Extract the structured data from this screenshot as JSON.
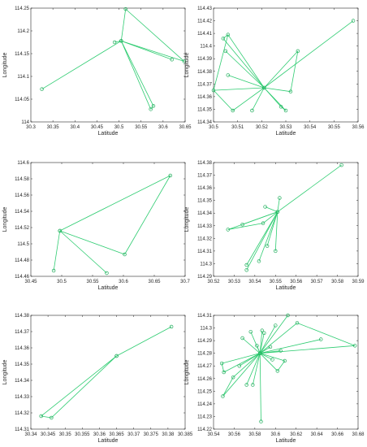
{
  "style": {
    "line_color": "#2ecc71",
    "marker_color": "#27ae60",
    "axis_color": "#262626",
    "grid_color": "#dddddd"
  },
  "chart_data": [
    {
      "type": "line",
      "xlabel": "Latitude",
      "ylabel": "Longitude",
      "xlim": [
        30.3,
        30.65
      ],
      "ylim": [
        114.0,
        114.25
      ],
      "xticks": [
        "30.3",
        "30.35",
        "30.4",
        "30.45",
        "30.5",
        "30.55",
        "30.6",
        "30.65"
      ],
      "yticks": [
        "114",
        "114.05",
        "114.1",
        "114.15",
        "114.2",
        "114.25"
      ],
      "hub": [
        30.505,
        114.178
      ],
      "spokes": [
        [
          30.325,
          114.072
        ],
        [
          30.49,
          114.175
        ],
        [
          30.515,
          114.248
        ],
        [
          30.572,
          114.028
        ],
        [
          30.578,
          114.035
        ],
        [
          30.62,
          114.137
        ],
        [
          30.648,
          114.133
        ]
      ],
      "lines": [
        [
          [
            30.515,
            114.248
          ],
          [
            30.648,
            114.133
          ]
        ],
        [
          [
            30.572,
            114.028
          ],
          [
            30.578,
            114.035
          ]
        ]
      ]
    },
    {
      "type": "line",
      "xlabel": "Latitude",
      "ylabel": "Longitude",
      "xlim": [
        30.5,
        30.56
      ],
      "ylim": [
        114.34,
        114.43
      ],
      "xticks": [
        "30.5",
        "30.51",
        "30.52",
        "30.53",
        "30.54",
        "30.55",
        "30.56"
      ],
      "yticks": [
        "114.34",
        "114.35",
        "114.36",
        "114.37",
        "114.38",
        "114.39",
        "114.4",
        "114.41",
        "114.42",
        "114.43"
      ],
      "hub": [
        30.521,
        114.367
      ],
      "spokes": [
        [
          30.5,
          114.365
        ],
        [
          30.504,
          114.406
        ],
        [
          30.505,
          114.396
        ],
        [
          30.506,
          114.409
        ],
        [
          30.506,
          114.377
        ],
        [
          30.508,
          114.349
        ],
        [
          30.516,
          114.349
        ],
        [
          30.528,
          114.352
        ],
        [
          30.53,
          114.349
        ],
        [
          30.532,
          114.364
        ],
        [
          30.535,
          114.396
        ],
        [
          30.558,
          114.42
        ]
      ],
      "lines": [
        [
          [
            30.504,
            114.406
          ],
          [
            30.506,
            114.409
          ]
        ],
        [
          [
            30.506,
            114.409
          ],
          [
            30.5,
            114.365
          ]
        ],
        [
          [
            30.5,
            114.365
          ],
          [
            30.508,
            114.349
          ]
        ],
        [
          [
            30.528,
            114.352
          ],
          [
            30.53,
            114.349
          ]
        ],
        [
          [
            30.532,
            114.364
          ],
          [
            30.535,
            114.396
          ]
        ]
      ]
    },
    {
      "type": "line",
      "xlabel": "Latitude",
      "ylabel": "Longitude",
      "xlim": [
        30.45,
        30.7
      ],
      "ylim": [
        114.46,
        114.6
      ],
      "xticks": [
        "30.45",
        "30.5",
        "30.55",
        "30.6",
        "30.65",
        "30.7"
      ],
      "yticks": [
        "114.46",
        "114.48",
        "114.5",
        "114.52",
        "114.54",
        "114.56",
        "114.58",
        "114.6"
      ],
      "hub": [
        30.497,
        114.516
      ],
      "spokes": [
        [
          30.487,
          114.467
        ],
        [
          30.573,
          114.464
        ],
        [
          30.602,
          114.487
        ],
        [
          30.676,
          114.584
        ]
      ],
      "lines": [
        [
          [
            30.602,
            114.487
          ],
          [
            30.676,
            114.584
          ]
        ]
      ]
    },
    {
      "type": "line",
      "xlabel": "Latitude",
      "ylabel": "Longitude",
      "xlim": [
        30.52,
        30.59
      ],
      "ylim": [
        114.29,
        114.38
      ],
      "xticks": [
        "30.52",
        "30.53",
        "30.54",
        "30.55",
        "30.56",
        "30.57",
        "30.58",
        "30.59"
      ],
      "yticks": [
        "114.29",
        "114.3",
        "114.31",
        "114.32",
        "114.33",
        "114.34",
        "114.35",
        "114.36",
        "114.37",
        "114.38"
      ],
      "hub": [
        30.551,
        114.341
      ],
      "spokes": [
        [
          30.527,
          114.327
        ],
        [
          30.534,
          114.331
        ],
        [
          30.536,
          114.299
        ],
        [
          30.536,
          114.295
        ],
        [
          30.542,
          114.302
        ],
        [
          30.544,
          114.332
        ],
        [
          30.545,
          114.345
        ],
        [
          30.546,
          114.314
        ],
        [
          30.55,
          114.31
        ],
        [
          30.552,
          114.352
        ],
        [
          30.582,
          114.378
        ]
      ],
      "lines": [
        [
          [
            30.527,
            114.327
          ],
          [
            30.544,
            114.332
          ]
        ]
      ]
    },
    {
      "type": "line",
      "xlabel": "Latitude",
      "ylabel": "Longitude",
      "xlim": [
        30.34,
        30.385
      ],
      "ylim": [
        114.31,
        114.38
      ],
      "xticks": [
        "30.34",
        "30.345",
        "30.35",
        "30.355",
        "30.36",
        "30.365",
        "30.37",
        "30.375",
        "30.38",
        "30.385"
      ],
      "yticks": [
        "114.31",
        "114.32",
        "114.33",
        "114.34",
        "114.35",
        "114.36",
        "114.37",
        "114.38"
      ],
      "hub": [
        30.365,
        114.355
      ],
      "spokes": [
        [
          30.343,
          114.318
        ],
        [
          30.346,
          114.317
        ],
        [
          30.381,
          114.373
        ]
      ],
      "lines": [
        [
          [
            30.343,
            114.318
          ],
          [
            30.346,
            114.317
          ]
        ]
      ]
    },
    {
      "type": "line",
      "xlabel": "Latitude",
      "ylabel": "Longitude",
      "xlim": [
        30.54,
        30.68
      ],
      "ylim": [
        114.22,
        114.31
      ],
      "xticks": [
        "30.54",
        "30.56",
        "30.58",
        "30.6",
        "30.62",
        "30.64",
        "30.66",
        "30.68"
      ],
      "yticks": [
        "114.22",
        "114.23",
        "114.24",
        "114.25",
        "114.26",
        "114.27",
        "114.28",
        "114.29",
        "114.3",
        "114.31"
      ],
      "hub": [
        30.585,
        114.28
      ],
      "spokes": [
        [
          30.548,
          114.272
        ],
        [
          30.55,
          114.265
        ],
        [
          30.549,
          114.246
        ],
        [
          30.559,
          114.261
        ],
        [
          30.565,
          114.27
        ],
        [
          30.568,
          114.292
        ],
        [
          30.572,
          114.255
        ],
        [
          30.576,
          114.297
        ],
        [
          30.578,
          114.255
        ],
        [
          30.582,
          114.286
        ],
        [
          30.586,
          114.226
        ],
        [
          30.587,
          114.298
        ],
        [
          30.589,
          114.296
        ],
        [
          30.595,
          114.285
        ],
        [
          30.597,
          114.275
        ],
        [
          30.6,
          114.302
        ],
        [
          30.602,
          114.266
        ],
        [
          30.605,
          114.282
        ],
        [
          30.609,
          114.274
        ],
        [
          30.612,
          114.31
        ],
        [
          30.621,
          114.304
        ],
        [
          30.644,
          114.291
        ],
        [
          30.677,
          114.286
        ]
      ],
      "lines": [
        [
          [
            30.548,
            114.272
          ],
          [
            30.55,
            114.265
          ]
        ],
        [
          [
            30.549,
            114.246
          ],
          [
            30.559,
            114.261
          ]
        ],
        [
          [
            30.621,
            114.304
          ],
          [
            30.677,
            114.286
          ]
        ],
        [
          [
            30.602,
            114.266
          ],
          [
            30.609,
            114.274
          ]
        ]
      ]
    }
  ]
}
